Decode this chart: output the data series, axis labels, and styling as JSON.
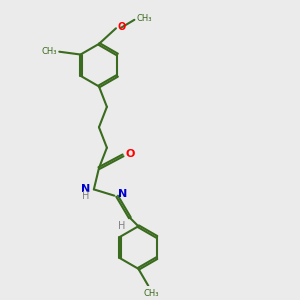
{
  "bg_color": "#ebebeb",
  "bond_color": "#3a6b1e",
  "o_color": "#ff0000",
  "n_color": "#0000cc",
  "h_color": "#808080",
  "line_width": 1.5,
  "dbo": 0.035,
  "xlim": [
    0,
    10
  ],
  "ylim": [
    0,
    10
  ],
  "ring_r": 0.75
}
